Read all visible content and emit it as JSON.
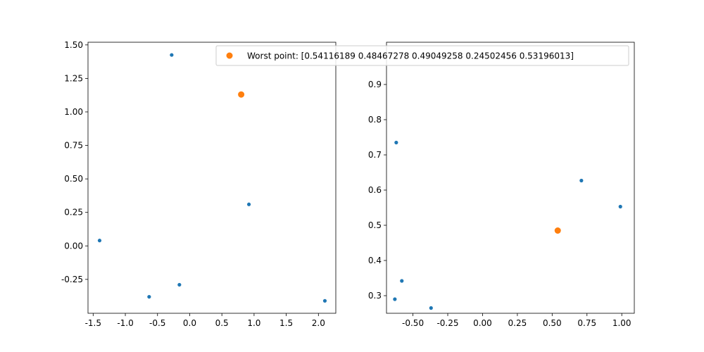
{
  "legend": {
    "label": "Worst point: [0.54116189 0.48467278 0.49049258 0.24502456 0.53196013]",
    "placement": "top-center",
    "marker_color": "#ff7f0e"
  },
  "chart_data": [
    {
      "type": "scatter",
      "xlim": [
        -1.58,
        2.27
      ],
      "ylim": [
        -0.503,
        1.52
      ],
      "xticks": [
        "-1.5",
        "-1.0",
        "-0.5",
        "0.0",
        "0.5",
        "1.0",
        "1.5",
        "2.0"
      ],
      "yticks": [
        "-0.25",
        "0.00",
        "0.25",
        "0.50",
        "0.75",
        "1.00",
        "1.25",
        "1.50"
      ],
      "series": [
        {
          "color": "#1f77b4",
          "marker_size": "small",
          "points": [
            [
              -0.28,
              1.425
            ],
            [
              0.92,
              0.31
            ],
            [
              -1.4,
              0.04
            ],
            [
              -0.16,
              -0.29
            ],
            [
              -0.63,
              -0.38
            ],
            [
              2.1,
              -0.41
            ]
          ]
        },
        {
          "name": "Worst point: [0.54116189 0.48467278 0.49049258 0.24502456 0.53196013]",
          "color": "#ff7f0e",
          "marker_size": "large",
          "points": [
            [
              0.8,
              1.13
            ]
          ]
        }
      ]
    },
    {
      "type": "scatter",
      "xlim": [
        -0.69,
        1.09
      ],
      "ylim": [
        0.25,
        1.02
      ],
      "xticks": [
        "-0.50",
        "-0.25",
        "0.00",
        "0.25",
        "0.50",
        "0.75",
        "1.00"
      ],
      "yticks": [
        "0.3",
        "0.4",
        "0.5",
        "0.6",
        "0.7",
        "0.8",
        "0.9"
      ],
      "series": [
        {
          "color": "#1f77b4",
          "marker_size": "small",
          "points": [
            [
              -0.62,
              0.735
            ],
            [
              0.71,
              0.627
            ],
            [
              0.99,
              0.553
            ],
            [
              -0.58,
              0.342
            ],
            [
              -0.63,
              0.29
            ],
            [
              -0.37,
              0.265
            ]
          ]
        },
        {
          "name": "Worst point: [0.54116189 0.48467278 0.49049258 0.24502456 0.53196013]",
          "color": "#ff7f0e",
          "marker_size": "large",
          "points": [
            [
              0.54,
              0.485
            ]
          ]
        }
      ]
    }
  ]
}
